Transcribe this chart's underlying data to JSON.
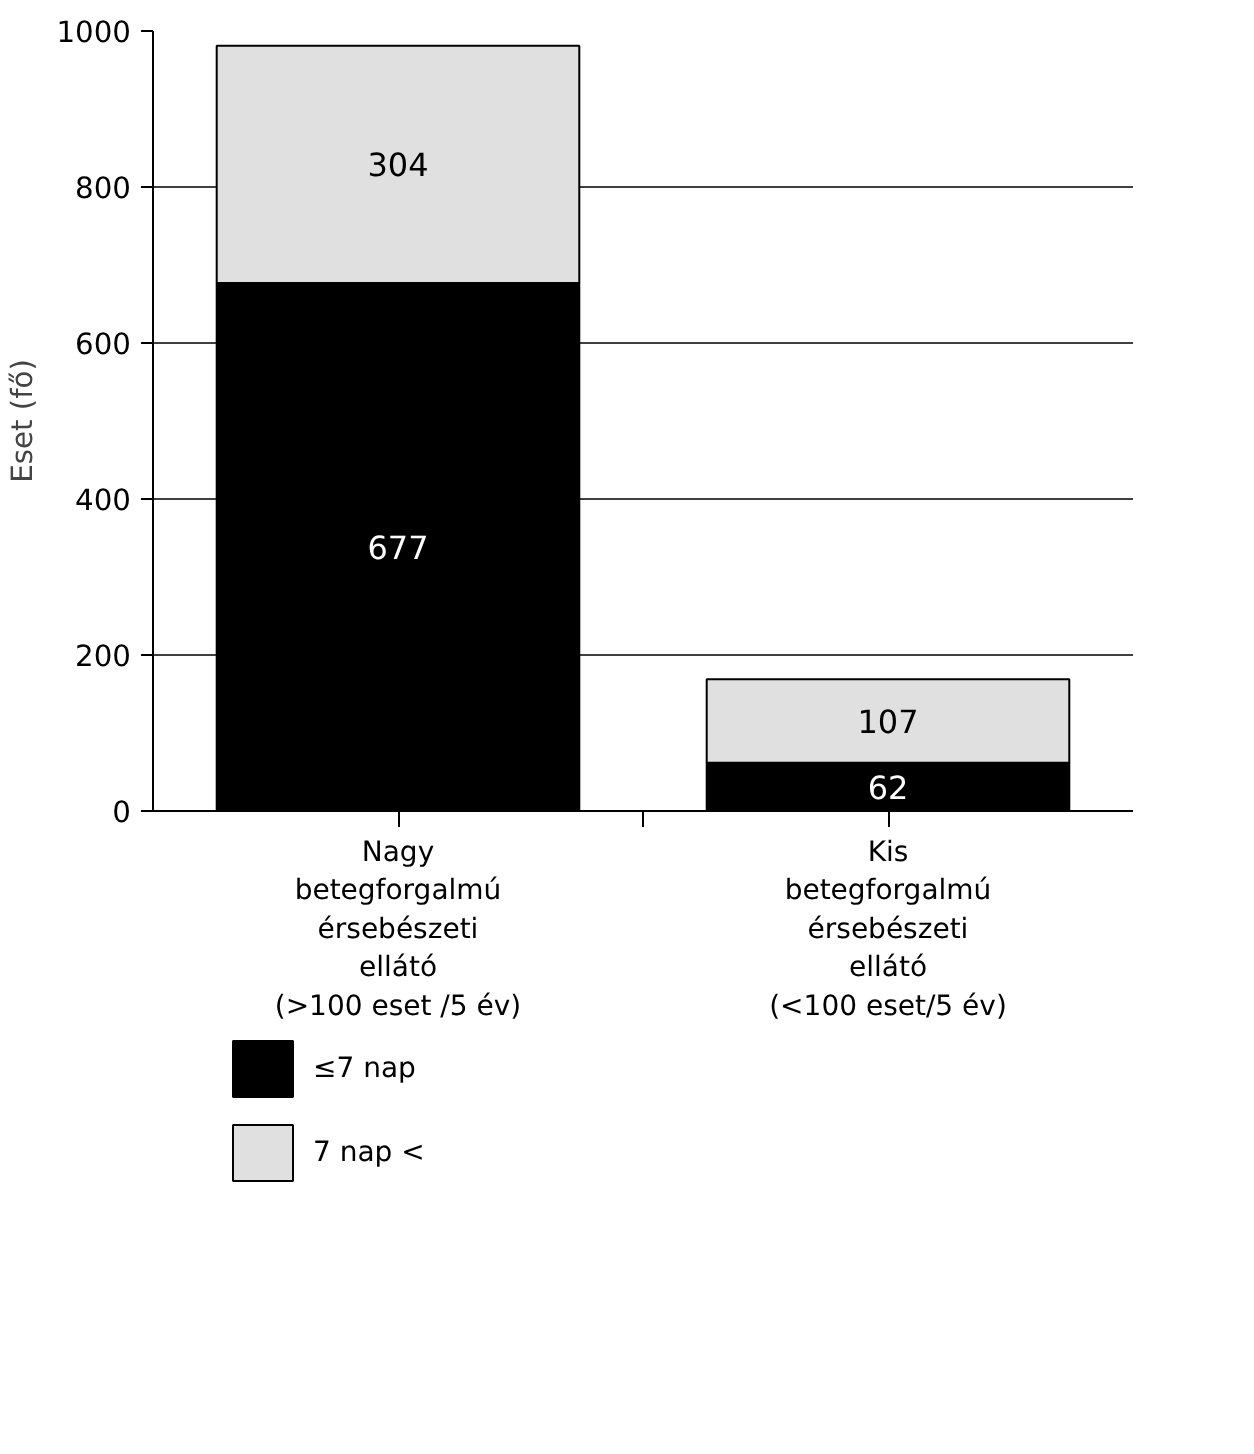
{
  "chart_data": {
    "type": "bar",
    "ylabel": "Eset (fő)",
    "stacked": true,
    "data_labels": true,
    "categories": [
      "Nagy\nbetegforgalmú\nérsebészeti\nellátó\n(>100 eset /5 év)",
      "Kis\nbetegforgalmú\nérsebészeti\nellátó\n(<100 eset/5 év)"
    ],
    "series": [
      {
        "name": "≤7 nap",
        "color": "#000000",
        "values": [
          677,
          62
        ]
      },
      {
        "name": "7 nap <",
        "color": "#e0e0e0",
        "values": [
          304,
          107
        ]
      }
    ],
    "ylim": [
      0,
      1000
    ],
    "yticks": [
      0,
      200,
      400,
      600,
      800,
      1000
    ],
    "grid": "y",
    "legend": "bottom left"
  }
}
